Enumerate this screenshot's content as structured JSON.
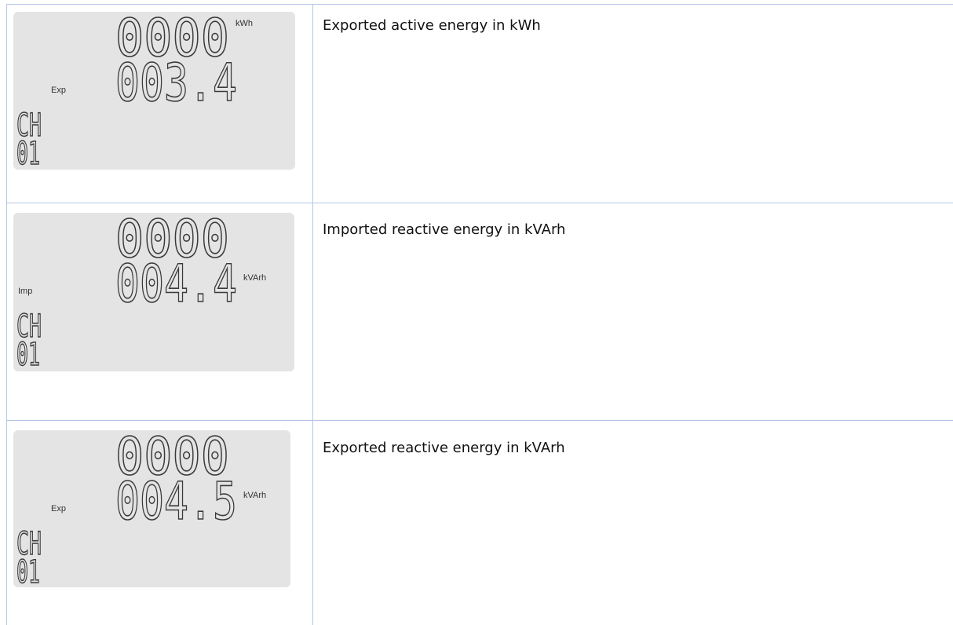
{
  "rows": [
    {
      "display": {
        "line1": "0000",
        "line2": "003.4",
        "mode": "Exp",
        "unit": "kWh",
        "channel_label": "CH",
        "channel": "01"
      },
      "description": "Exported active energy in kWh"
    },
    {
      "display": {
        "line1": "0000",
        "line2": "004.4",
        "mode": "Imp",
        "unit": "kVArh",
        "channel_label": "CH",
        "channel": "01"
      },
      "description": "Imported reactive energy in kVArh"
    },
    {
      "display": {
        "line1": "0000",
        "line2": "004.5",
        "mode": "Exp",
        "unit": "kVArh",
        "channel_label": "CH",
        "channel": "01"
      },
      "description": "Exported reactive energy in kVArh"
    }
  ]
}
